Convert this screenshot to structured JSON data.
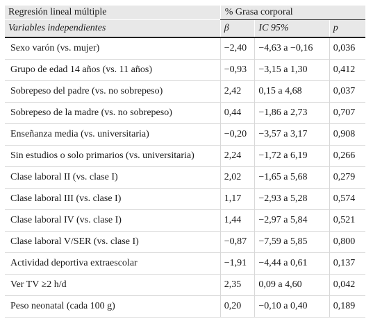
{
  "table": {
    "header_group_left": "Regresión lineal múltiple",
    "header_group_right": "% Grasa corporal",
    "col_variables": "Variables independientes",
    "col_beta": "β",
    "col_ci": "IC 95%",
    "col_p": "p",
    "rows": [
      {
        "variable": "Sexo varón (vs. mujer)",
        "beta": "−2,40",
        "ci": "−4,63 a −0,16",
        "p": "0,036"
      },
      {
        "variable": "Grupo de edad 14 años (vs. 11 años)",
        "beta": "−0,93",
        "ci": "−3,15 a 1,30",
        "p": "0,412"
      },
      {
        "variable": "Sobrepeso del padre (vs. no sobrepeso)",
        "beta": "2,42",
        "ci": "0,15 a 4,68",
        "p": "0,037"
      },
      {
        "variable": "Sobrepeso de la madre (vs. no sobrepeso)",
        "beta": "0,44",
        "ci": "−1,86 a 2,73",
        "p": "0,707"
      },
      {
        "variable": "Enseñanza media (vs. universitaria)",
        "beta": "−0,20",
        "ci": "−3,57 a 3,17",
        "p": "0,908"
      },
      {
        "variable": "Sin estudios o solo primarios (vs. universitaria)",
        "beta": "2,24",
        "ci": "−1,72 a 6,19",
        "p": "0,266"
      },
      {
        "variable": "Clase laboral II (vs. clase I)",
        "beta": "2,02",
        "ci": "−1,65 a 5,68",
        "p": "0,279"
      },
      {
        "variable": "Clase laboral III (vs. clase I)",
        "beta": "1,17",
        "ci": "−2,93 a 5,28",
        "p": "0,574"
      },
      {
        "variable": "Clase laboral IV (vs. clase I)",
        "beta": "1,44",
        "ci": "−2,97 a 5,84",
        "p": "0,521"
      },
      {
        "variable": "Clase laboral V/SER (vs. clase I)",
        "beta": "−0,87",
        "ci": "−7,59 a 5,85",
        "p": "0,800"
      },
      {
        "variable": "Actividad deportiva extraescolar",
        "beta": "−1,91",
        "ci": "−4,44 a 0,61",
        "p": "0,137"
      },
      {
        "variable": "Ver TV ≥2 h/d",
        "beta": "2,35",
        "ci": "0,09 a 4,60",
        "p": "0,042"
      },
      {
        "variable": "Peso neonatal (cada 100 g)",
        "beta": "0,20",
        "ci": "−0,10 a 0,40",
        "p": "0,189"
      }
    ]
  }
}
